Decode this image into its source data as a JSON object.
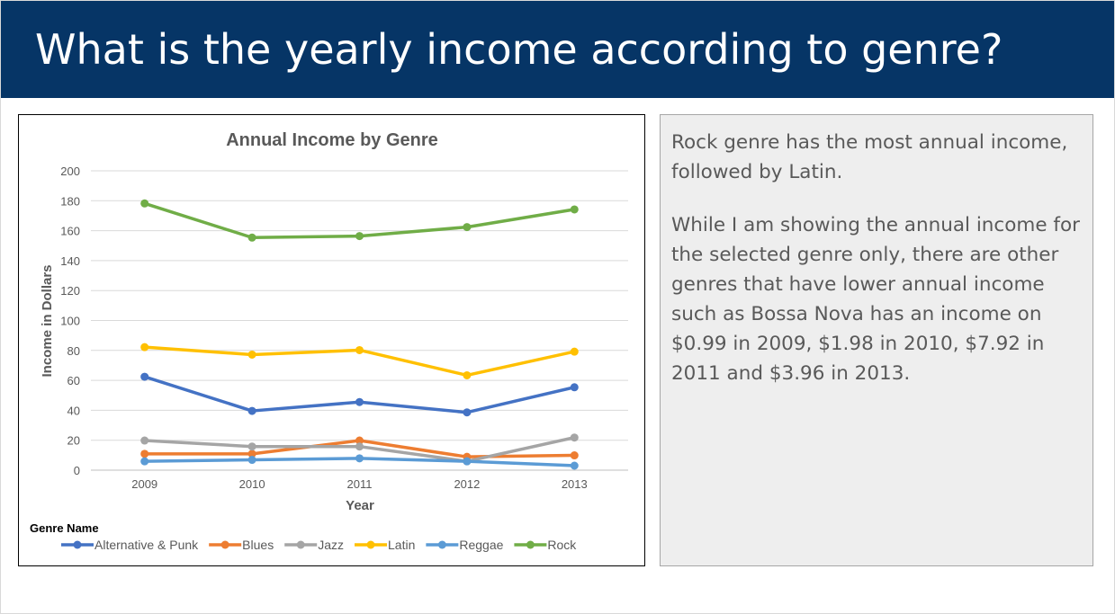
{
  "slide": {
    "title": "What is the yearly income according to genre?",
    "header_color": "#063566"
  },
  "commentary": {
    "paragraph_1": "Rock genre has the most annual income, followed by Latin.",
    "paragraph_2": "While I am showing the annual income for the selected genre only, there are other genres that have lower annual income such as Bossa Nova has an income on $0.99 in 2009, $1.98 in 2010, $7.92 in 2011 and $3.96 in 2013."
  },
  "chart_data": {
    "type": "line",
    "title": "Annual Income by Genre",
    "xlabel": "Year",
    "ylabel": "Income in Dollars",
    "categories": [
      "2009",
      "2010",
      "2011",
      "2012",
      "2013"
    ],
    "ylim": [
      0,
      200
    ],
    "yticks": [
      0,
      20,
      40,
      60,
      80,
      100,
      120,
      140,
      160,
      180,
      200
    ],
    "grid": true,
    "legend_title": "Genre Name",
    "legend_position": "bottom",
    "series": [
      {
        "name": "Alternative & Punk",
        "color": "#4472C4",
        "values": [
          62.4,
          39.6,
          45.5,
          38.6,
          55.4
        ]
      },
      {
        "name": "Blues",
        "color": "#ED7D31",
        "values": [
          10.9,
          10.9,
          19.8,
          8.9,
          9.9
        ]
      },
      {
        "name": "Jazz",
        "color": "#A5A5A5",
        "values": [
          19.8,
          15.8,
          15.8,
          5.9,
          21.8
        ]
      },
      {
        "name": "Latin",
        "color": "#FFC000",
        "values": [
          82.2,
          77.2,
          80.2,
          63.4,
          79.2
        ]
      },
      {
        "name": "Reggae",
        "color": "#5B9BD5",
        "values": [
          5.9,
          6.9,
          7.9,
          5.9,
          3.0
        ]
      },
      {
        "name": "Rock",
        "color": "#70AD47",
        "values": [
          178.2,
          155.4,
          156.4,
          162.4,
          174.2
        ]
      }
    ]
  }
}
